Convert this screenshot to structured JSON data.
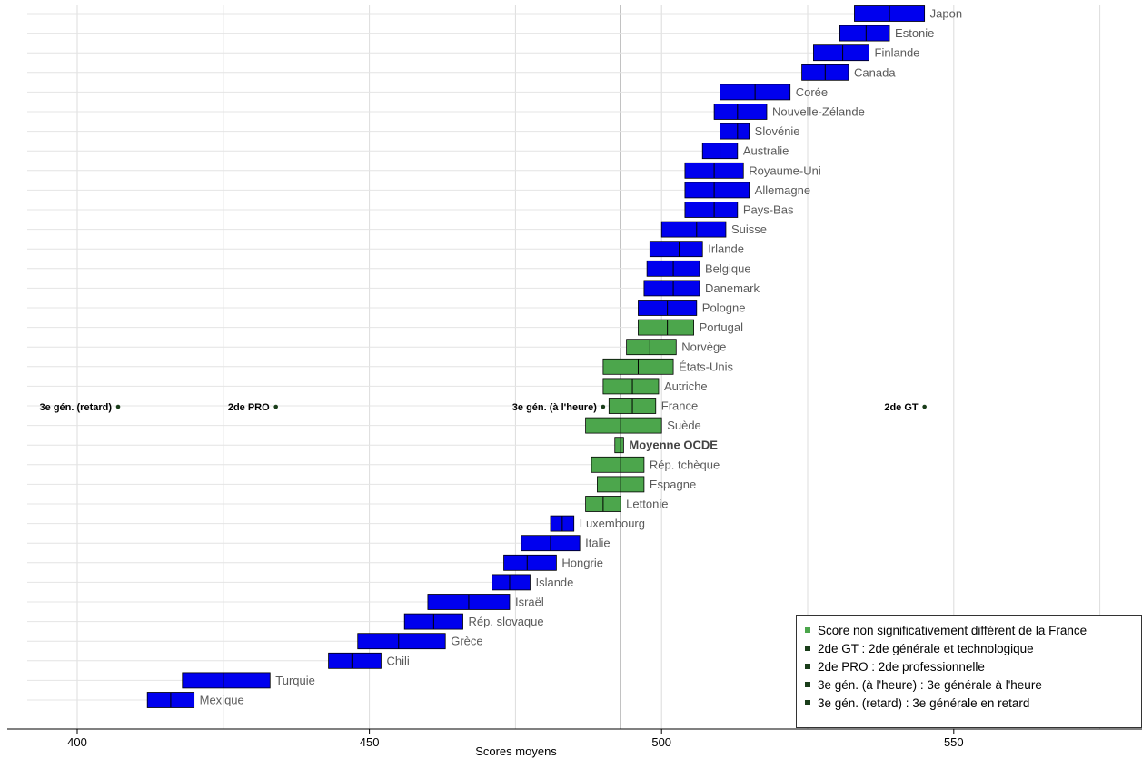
{
  "chart_data": {
    "type": "range",
    "xlabel": "Scores moyens",
    "xlim": [
      400,
      575
    ],
    "xticks": [
      400,
      450,
      500,
      550
    ],
    "reference_line": 493,
    "colors": {
      "significant": "#0000ee",
      "not_significant": "#4ca64c",
      "marker": "#1a3d1a"
    },
    "countries": [
      {
        "name": "Japon",
        "low": 533,
        "mean": 539,
        "high": 545,
        "group": "significant"
      },
      {
        "name": "Estonie",
        "low": 530.5,
        "mean": 535,
        "high": 539,
        "group": "significant"
      },
      {
        "name": "Finlande",
        "low": 526,
        "mean": 531,
        "high": 535.5,
        "group": "significant"
      },
      {
        "name": "Canada",
        "low": 524,
        "mean": 528,
        "high": 532,
        "group": "significant"
      },
      {
        "name": "Corée",
        "low": 510,
        "mean": 516,
        "high": 522,
        "group": "significant"
      },
      {
        "name": "Nouvelle-Zélande",
        "low": 509,
        "mean": 513,
        "high": 518,
        "group": "significant"
      },
      {
        "name": "Slovénie",
        "low": 510,
        "mean": 513,
        "high": 515,
        "group": "significant"
      },
      {
        "name": "Australie",
        "low": 507,
        "mean": 510,
        "high": 513,
        "group": "significant"
      },
      {
        "name": "Royaume-Uni",
        "low": 504,
        "mean": 509,
        "high": 514,
        "group": "significant"
      },
      {
        "name": "Allemagne",
        "low": 504,
        "mean": 509,
        "high": 515,
        "group": "significant"
      },
      {
        "name": "Pays-Bas",
        "low": 504,
        "mean": 509,
        "high": 513,
        "group": "significant"
      },
      {
        "name": "Suisse",
        "low": 500,
        "mean": 506,
        "high": 511,
        "group": "significant"
      },
      {
        "name": "Irlande",
        "low": 498,
        "mean": 503,
        "high": 507,
        "group": "significant"
      },
      {
        "name": "Belgique",
        "low": 497.5,
        "mean": 502,
        "high": 506.5,
        "group": "significant"
      },
      {
        "name": "Danemark",
        "low": 497,
        "mean": 502,
        "high": 506.5,
        "group": "significant"
      },
      {
        "name": "Pologne",
        "low": 496,
        "mean": 501,
        "high": 506,
        "group": "significant"
      },
      {
        "name": "Portugal",
        "low": 496,
        "mean": 501,
        "high": 505.5,
        "group": "not_significant"
      },
      {
        "name": "Norvège",
        "low": 494,
        "mean": 498,
        "high": 502.5,
        "group": "not_significant"
      },
      {
        "name": "États-Unis",
        "low": 490,
        "mean": 496,
        "high": 502,
        "group": "not_significant"
      },
      {
        "name": "Autriche",
        "low": 490,
        "mean": 495,
        "high": 499.5,
        "group": "not_significant"
      },
      {
        "name": "France",
        "low": 491,
        "mean": 495,
        "high": 499,
        "group": "not_significant"
      },
      {
        "name": "Suède",
        "low": 487,
        "mean": 493,
        "high": 500,
        "group": "not_significant"
      },
      {
        "name": "Moyenne OCDE",
        "low": 492,
        "mean": 493,
        "high": 493.5,
        "group": "not_significant"
      },
      {
        "name": "Rép. tchèque",
        "low": 488,
        "mean": 493,
        "high": 497,
        "group": "not_significant"
      },
      {
        "name": "Espagne",
        "low": 489,
        "mean": 493,
        "high": 497,
        "group": "not_significant"
      },
      {
        "name": "Lettonie",
        "low": 487,
        "mean": 490,
        "high": 493,
        "group": "not_significant"
      },
      {
        "name": "Luxembourg",
        "low": 481,
        "mean": 483,
        "high": 485,
        "group": "significant"
      },
      {
        "name": "Italie",
        "low": 476,
        "mean": 481,
        "high": 486,
        "group": "significant"
      },
      {
        "name": "Hongrie",
        "low": 473,
        "mean": 477,
        "high": 482,
        "group": "significant"
      },
      {
        "name": "Islande",
        "low": 471,
        "mean": 474,
        "high": 477.5,
        "group": "significant"
      },
      {
        "name": "Israël",
        "low": 460,
        "mean": 467,
        "high": 474,
        "group": "significant"
      },
      {
        "name": "Rép. slovaque",
        "low": 456,
        "mean": 461,
        "high": 466,
        "group": "significant"
      },
      {
        "name": "Grèce",
        "low": 448,
        "mean": 455,
        "high": 463,
        "group": "significant"
      },
      {
        "name": "Chili",
        "low": 443,
        "mean": 447,
        "high": 452,
        "group": "significant"
      },
      {
        "name": "Turquie",
        "low": 418,
        "mean": 425,
        "high": 433,
        "group": "significant"
      },
      {
        "name": "Mexique",
        "low": 412,
        "mean": 416,
        "high": 420,
        "group": "significant"
      }
    ],
    "markers": [
      {
        "label": "3e gén. (retard)",
        "value": 407
      },
      {
        "label": "2de PRO",
        "value": 434
      },
      {
        "label": "3e gén. (à l'heure)",
        "value": 490
      },
      {
        "label": "2de GT",
        "value": 545
      }
    ],
    "legend": [
      {
        "text": "Score non significativement différent de la France",
        "color": "#4ca64c"
      },
      {
        "text": "2de GT : 2de générale et technologique",
        "color": "#1a3d1a"
      },
      {
        "text": "2de PRO : 2de professionnelle",
        "color": "#1a3d1a"
      },
      {
        "text": "3e gén. (à l'heure) : 3e générale à l'heure",
        "color": "#1a3d1a"
      },
      {
        "text": "3e gén. (retard) : 3e générale en retard",
        "color": "#1a3d1a"
      }
    ]
  }
}
